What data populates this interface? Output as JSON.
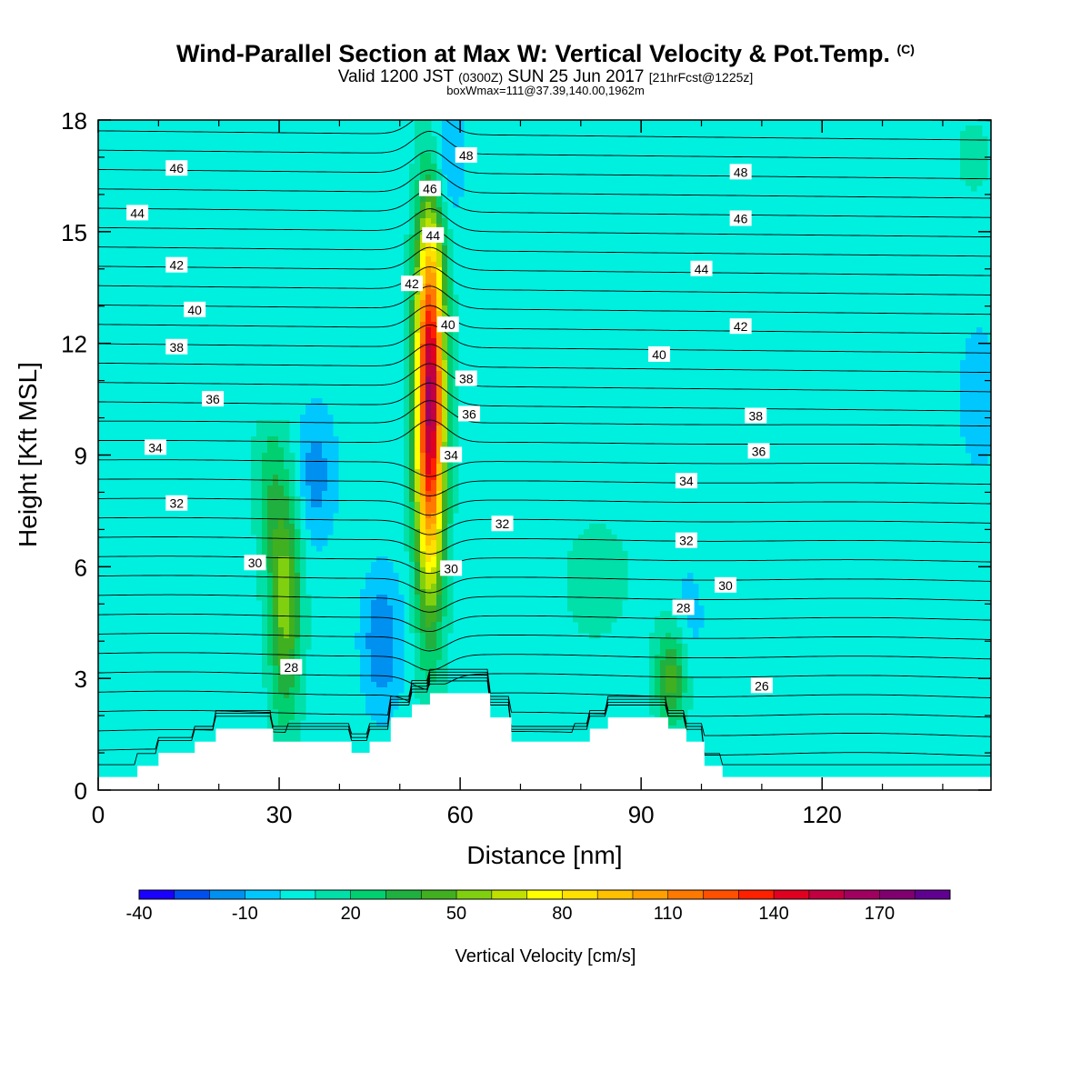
{
  "header": {
    "title": "Wind-Parallel Section at Max W: Vertical Velocity & Pot.Temp.",
    "copyright": "(C)",
    "valid_prefix": "Valid 1200 JST",
    "valid_utc": "(0300Z)",
    "valid_date": "SUN 25 Jun 2017",
    "forecast": "[21hrFcst@1225z]",
    "box_info": "boxWmax=111@37.39,140.00,1962m"
  },
  "colorbar": {
    "label": "Vertical Velocity [cm/s]",
    "tick_labels": [
      "-40",
      "-10",
      "20",
      "50",
      "80",
      "110",
      "140",
      "170"
    ],
    "colors": [
      "#1a00ff",
      "#0050f0",
      "#0090f0",
      "#00c8ff",
      "#00f0e0",
      "#00e0a8",
      "#00d070",
      "#20b040",
      "#40b020",
      "#80d010",
      "#c0e000",
      "#ffff00",
      "#ffe000",
      "#ffc000",
      "#ffa000",
      "#ff7800",
      "#ff5000",
      "#ff2000",
      "#e00020",
      "#c00040",
      "#a00060",
      "#800070",
      "#600090"
    ]
  },
  "chart_data": {
    "type": "heatmap",
    "title": "Wind-Parallel Section at Max W: Vertical Velocity & Pot.Temp.",
    "xlabel": "Distance [nm]",
    "ylabel": "Height [Kft MSL]",
    "xlim": [
      0,
      148
    ],
    "ylim": [
      0,
      18
    ],
    "x_ticks": [
      0,
      30,
      60,
      90,
      120
    ],
    "y_ticks": [
      0,
      3,
      6,
      9,
      12,
      15,
      18
    ],
    "background_value_cm_s": -10,
    "updrafts": [
      {
        "name": "main",
        "x": 55,
        "y_bottom": 3.5,
        "y_top": 15,
        "peak_height": 10.5,
        "peak_value_cm_s": 150
      },
      {
        "name": "secondary",
        "x": 31,
        "y_bottom": 3,
        "y_top": 10,
        "peak_height": 5,
        "peak_value_cm_s": 40
      },
      {
        "name": "lee",
        "x": 95,
        "y_bottom": 1.5,
        "y_top": 4.5,
        "peak_height": 3,
        "peak_value_cm_s": 30
      }
    ],
    "downdrafts": [
      {
        "x": 47,
        "y": 4,
        "value_cm_s": -35
      },
      {
        "x": 36,
        "y": 8.5,
        "value_cm_s": -30
      },
      {
        "x": 57,
        "y": 17,
        "value_cm_s": -30
      },
      {
        "x": 98,
        "y": 4.8,
        "value_cm_s": -20
      },
      {
        "x": 146,
        "y": 10.5,
        "value_cm_s": -25
      }
    ],
    "terrain_profile": [
      [
        0,
        0.35
      ],
      [
        6.5,
        0.35
      ],
      [
        6.5,
        0.65
      ],
      [
        10,
        0.65
      ],
      [
        10,
        1
      ],
      [
        16,
        1
      ],
      [
        16,
        1.3
      ],
      [
        19.5,
        1.3
      ],
      [
        19.5,
        1.65
      ],
      [
        29,
        1.65
      ],
      [
        29,
        1.3
      ],
      [
        42,
        1.3
      ],
      [
        42,
        1
      ],
      [
        45,
        1
      ],
      [
        45,
        1.3
      ],
      [
        48.5,
        1.3
      ],
      [
        48.5,
        1.95
      ],
      [
        52,
        1.95
      ],
      [
        52,
        2.3
      ],
      [
        55,
        2.3
      ],
      [
        55,
        2.6
      ],
      [
        65,
        2.6
      ],
      [
        65,
        1.95
      ],
      [
        68.5,
        1.95
      ],
      [
        68.5,
        1.3
      ],
      [
        81.5,
        1.3
      ],
      [
        81.5,
        1.65
      ],
      [
        84.5,
        1.65
      ],
      [
        84.5,
        1.95
      ],
      [
        94.5,
        1.95
      ],
      [
        94.5,
        1.65
      ],
      [
        97.5,
        1.65
      ],
      [
        97.5,
        1.3
      ],
      [
        100.5,
        1.3
      ],
      [
        100.5,
        0.65
      ],
      [
        103.5,
        0.65
      ],
      [
        103.5,
        0.35
      ],
      [
        148,
        0.35
      ]
    ],
    "theta_label_unit": "Pot.Temp.",
    "contour_labels": [
      {
        "text": "46",
        "x": 13,
        "y": 16.7
      },
      {
        "text": "44",
        "x": 6.5,
        "y": 15.5
      },
      {
        "text": "42",
        "x": 13,
        "y": 14.1
      },
      {
        "text": "40",
        "x": 16,
        "y": 12.9
      },
      {
        "text": "38",
        "x": 13,
        "y": 11.9
      },
      {
        "text": "36",
        "x": 19,
        "y": 10.5
      },
      {
        "text": "34",
        "x": 9.5,
        "y": 9.2
      },
      {
        "text": "32",
        "x": 13,
        "y": 7.7
      },
      {
        "text": "30",
        "x": 26,
        "y": 6.1
      },
      {
        "text": "28",
        "x": 32,
        "y": 3.3
      },
      {
        "text": "48",
        "x": 61,
        "y": 17.05
      },
      {
        "text": "46",
        "x": 55,
        "y": 16.15
      },
      {
        "text": "44",
        "x": 55.5,
        "y": 14.9
      },
      {
        "text": "42",
        "x": 52,
        "y": 13.6
      },
      {
        "text": "40",
        "x": 58,
        "y": 12.5
      },
      {
        "text": "38",
        "x": 61,
        "y": 11.05
      },
      {
        "text": "36",
        "x": 61.5,
        "y": 10.1
      },
      {
        "text": "34",
        "x": 58.5,
        "y": 9
      },
      {
        "text": "32",
        "x": 67,
        "y": 7.15
      },
      {
        "text": "30",
        "x": 58.5,
        "y": 5.95
      },
      {
        "text": "48",
        "x": 106.5,
        "y": 16.6
      },
      {
        "text": "46",
        "x": 106.5,
        "y": 15.35
      },
      {
        "text": "44",
        "x": 100,
        "y": 14
      },
      {
        "text": "42",
        "x": 106.5,
        "y": 12.45
      },
      {
        "text": "40",
        "x": 93,
        "y": 11.7
      },
      {
        "text": "38",
        "x": 109,
        "y": 10.05
      },
      {
        "text": "36",
        "x": 109.5,
        "y": 9.1
      },
      {
        "text": "34",
        "x": 97.5,
        "y": 8.3
      },
      {
        "text": "32",
        "x": 97.5,
        "y": 6.7
      },
      {
        "text": "30",
        "x": 104,
        "y": 5.5
      },
      {
        "text": "28",
        "x": 97,
        "y": 4.9
      },
      {
        "text": "26",
        "x": 110,
        "y": 2.8
      }
    ]
  }
}
